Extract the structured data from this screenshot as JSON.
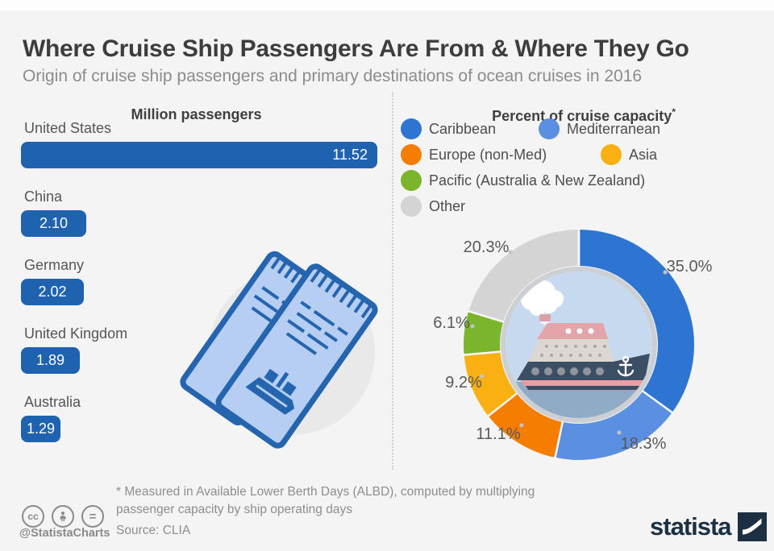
{
  "header": {
    "title": "Where Cruise Ship Passengers Are From & Where They Go",
    "subtitle": "Origin of cruise ship passengers and primary destinations of ocean cruises in 2016"
  },
  "chart_data": [
    {
      "type": "bar",
      "title": "Million passengers",
      "orientation": "horizontal",
      "categories": [
        "United States",
        "China",
        "Germany",
        "United Kingdom",
        "Australia"
      ],
      "values": [
        11.52,
        2.1,
        2.02,
        1.89,
        1.29
      ],
      "value_labels": [
        "11.52",
        "2.10",
        "2.02",
        "1.89",
        "1.29"
      ],
      "bar_color": "#1f63b0",
      "xlim": [
        0,
        11.52
      ],
      "grid": false
    },
    {
      "type": "pie",
      "donut": true,
      "title": "Percent of cruise capacity",
      "title_marker": "*",
      "start_angle_deg": 0,
      "direction": "clockwise",
      "legend_position": "top",
      "slices": [
        {
          "label": "Caribbean",
          "value": 35.0,
          "display": "35.0%",
          "color": "#2e75d2"
        },
        {
          "label": "Mediterranean",
          "value": 18.3,
          "display": "18.3%",
          "color": "#5b90e0"
        },
        {
          "label": "Europe (non-Med)",
          "value": 11.1,
          "display": "11.1%",
          "color": "#f57d00"
        },
        {
          "label": "Asia",
          "value": 9.2,
          "display": "9.2%",
          "color": "#f9b013"
        },
        {
          "label": "Pacific (Australia & New Zealand)",
          "value": 6.1,
          "display": "6.1%",
          "color": "#7ab52c"
        },
        {
          "label": "Other",
          "value": 20.3,
          "display": "20.3%",
          "color": "#d4d4d4"
        }
      ]
    }
  ],
  "footer": {
    "footnote_line1": "* Measured in Available Lower Berth Days (ALBD), computed by multiplying",
    "footnote_line2": "passenger capacity by ship operating days",
    "source": "Source: CLIA",
    "credit": "@StatistaCharts",
    "brand": "statista",
    "cc_label": "cc",
    "nd_label": "="
  },
  "colors": {
    "background": "#f4f4f4",
    "title_text": "#3d3d3d",
    "subtitle_text": "#8c8c8c",
    "body_text": "#565656",
    "bar_blue": "#1f63b0",
    "brand_navy": "#1d2f42"
  }
}
